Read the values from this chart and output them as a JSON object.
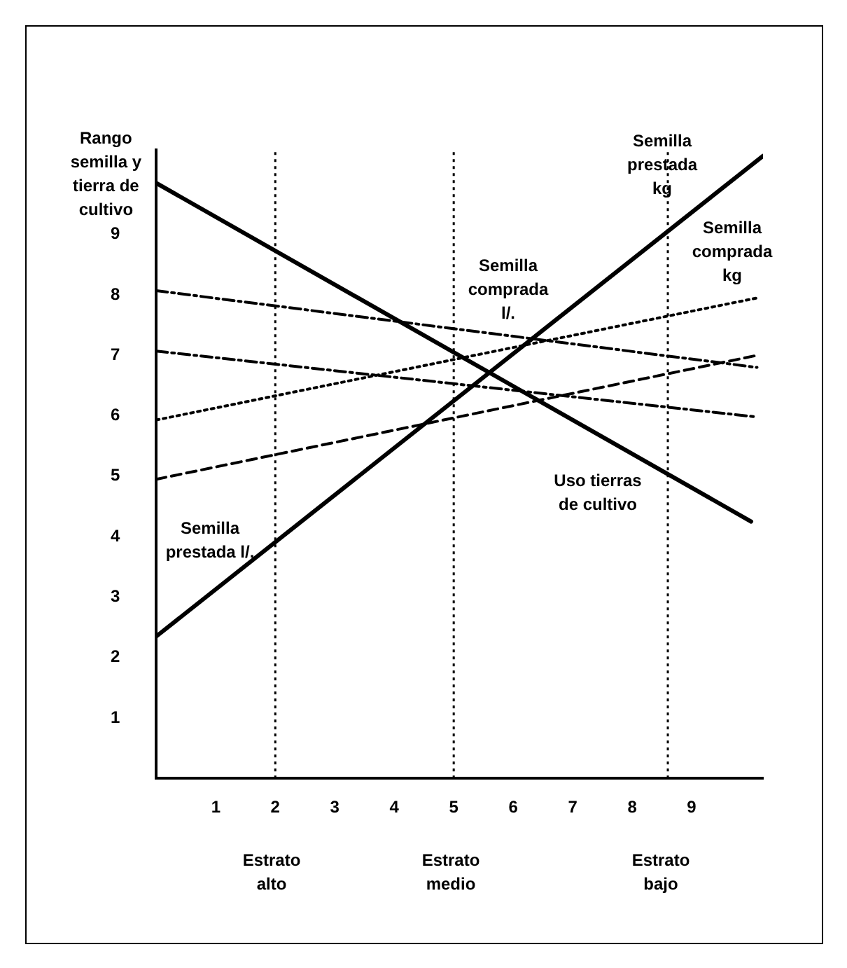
{
  "chart_data": {
    "type": "line",
    "ylabel": "Rango semilla y tierra de cultivo",
    "xlim": [
      0,
      10.2
    ],
    "ylim": [
      0,
      10.4
    ],
    "xticks": [
      1,
      2,
      3,
      4,
      5,
      6,
      7,
      8,
      9
    ],
    "yticks": [
      1,
      2,
      3,
      4,
      5,
      6,
      7,
      8,
      9
    ],
    "grid": false,
    "legend": false,
    "marker": "none",
    "series": [
      {
        "color": "#000000",
        "line_style": "solid",
        "x": [
          0,
          10
        ],
        "values": [
          9.85,
          4.25
        ]
      },
      {
        "color": "#000000",
        "line_style": "solid",
        "x": [
          0,
          10.2
        ],
        "values": [
          2.35,
          10.3
        ]
      },
      {
        "color": "#000000",
        "line_style": "dashdot",
        "x": [
          0,
          10.1
        ],
        "values": [
          8.07,
          6.8
        ]
      },
      {
        "color": "#000000",
        "line_style": "dashdot",
        "x": [
          0,
          10.1
        ],
        "values": [
          7.07,
          5.98
        ]
      },
      {
        "color": "#000000",
        "line_style": "dotted",
        "x": [
          0,
          10.1
        ],
        "values": [
          5.93,
          7.95
        ]
      },
      {
        "color": "#000000",
        "line_style": "dashed",
        "x": [
          0,
          10.1
        ],
        "values": [
          4.95,
          7.0
        ]
      }
    ],
    "ref_lines": [
      {
        "axis": "x",
        "value": 2,
        "line_style": "dotted"
      },
      {
        "axis": "x",
        "value": 5,
        "line_style": "dotted"
      },
      {
        "axis": "x",
        "value": 8.6,
        "line_style": "dotted"
      }
    ],
    "annotations": [
      "Semilla prestada l/.",
      "Semilla comprada l/.",
      "Semilla prestada kg",
      "Semilla comprada kg",
      "Uso tierras de cultivo",
      "Estrato alto",
      "Estrato medio",
      "Estrato bajo"
    ]
  }
}
